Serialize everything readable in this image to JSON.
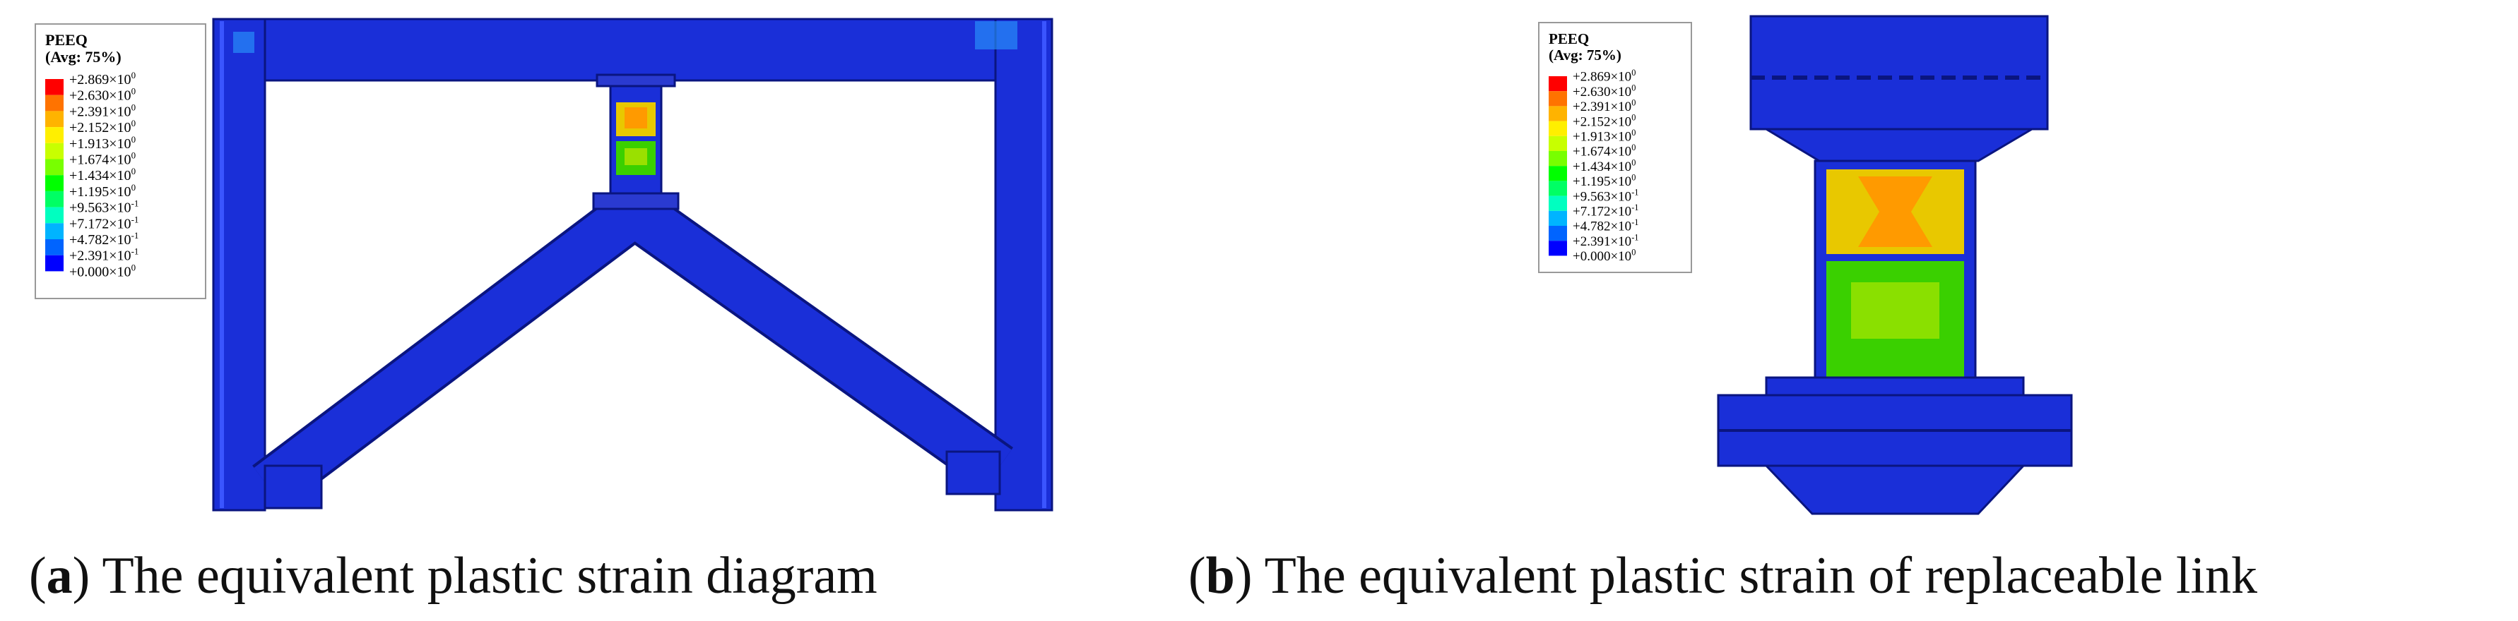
{
  "panels": [
    {
      "legend": {
        "title": "PEEQ",
        "subtitle": "(Avg: 75%)",
        "colors": [
          "#ff0000",
          "#ff7300",
          "#ffb300",
          "#ffef00",
          "#c8ff00",
          "#78ff00",
          "#00ff00",
          "#00ff64",
          "#00ffc0",
          "#00b4ff",
          "#0064ff",
          "#0000ff"
        ],
        "labels": [
          {
            "mantissa": "+2.869×10",
            "exponent": "0"
          },
          {
            "mantissa": "+2.630×10",
            "exponent": "0"
          },
          {
            "mantissa": "+2.391×10",
            "exponent": "0"
          },
          {
            "mantissa": "+2.152×10",
            "exponent": "0"
          },
          {
            "mantissa": "+1.913×10",
            "exponent": "0"
          },
          {
            "mantissa": "+1.674×10",
            "exponent": "0"
          },
          {
            "mantissa": "+1.434×10",
            "exponent": "0"
          },
          {
            "mantissa": "+1.195×10",
            "exponent": "0"
          },
          {
            "mantissa": "+9.563×10",
            "exponent": "-1"
          },
          {
            "mantissa": "+7.172×10",
            "exponent": "-1"
          },
          {
            "mantissa": "+4.782×10",
            "exponent": "-1"
          },
          {
            "mantissa": "+2.391×10",
            "exponent": "-1"
          },
          {
            "mantissa": "+0.000×10",
            "exponent": "0"
          }
        ]
      },
      "caption": {
        "open": "(",
        "letter": "a",
        "rest": ") The equivalent plastic strain diagram"
      }
    },
    {
      "legend": {
        "title": "PEEQ",
        "subtitle": "(Avg: 75%)",
        "colors": [
          "#ff0000",
          "#ff7300",
          "#ffb300",
          "#ffef00",
          "#c8ff00",
          "#78ff00",
          "#00ff00",
          "#00ff64",
          "#00ffc0",
          "#00b4ff",
          "#0064ff",
          "#0000ff"
        ],
        "labels": [
          {
            "mantissa": "+2.869×10",
            "exponent": "0"
          },
          {
            "mantissa": "+2.630×10",
            "exponent": "0"
          },
          {
            "mantissa": "+2.391×10",
            "exponent": "0"
          },
          {
            "mantissa": "+2.152×10",
            "exponent": "0"
          },
          {
            "mantissa": "+1.913×10",
            "exponent": "0"
          },
          {
            "mantissa": "+1.674×10",
            "exponent": "0"
          },
          {
            "mantissa": "+1.434×10",
            "exponent": "0"
          },
          {
            "mantissa": "+1.195×10",
            "exponent": "0"
          },
          {
            "mantissa": "+9.563×10",
            "exponent": "-1"
          },
          {
            "mantissa": "+7.172×10",
            "exponent": "-1"
          },
          {
            "mantissa": "+4.782×10",
            "exponent": "-1"
          },
          {
            "mantissa": "+2.391×10",
            "exponent": "-1"
          },
          {
            "mantissa": "+0.000×10",
            "exponent": "0"
          }
        ]
      },
      "caption": {
        "open": "(",
        "letter": "b",
        "rest": ") The equivalent plastic strain of replaceable link"
      }
    }
  ]
}
